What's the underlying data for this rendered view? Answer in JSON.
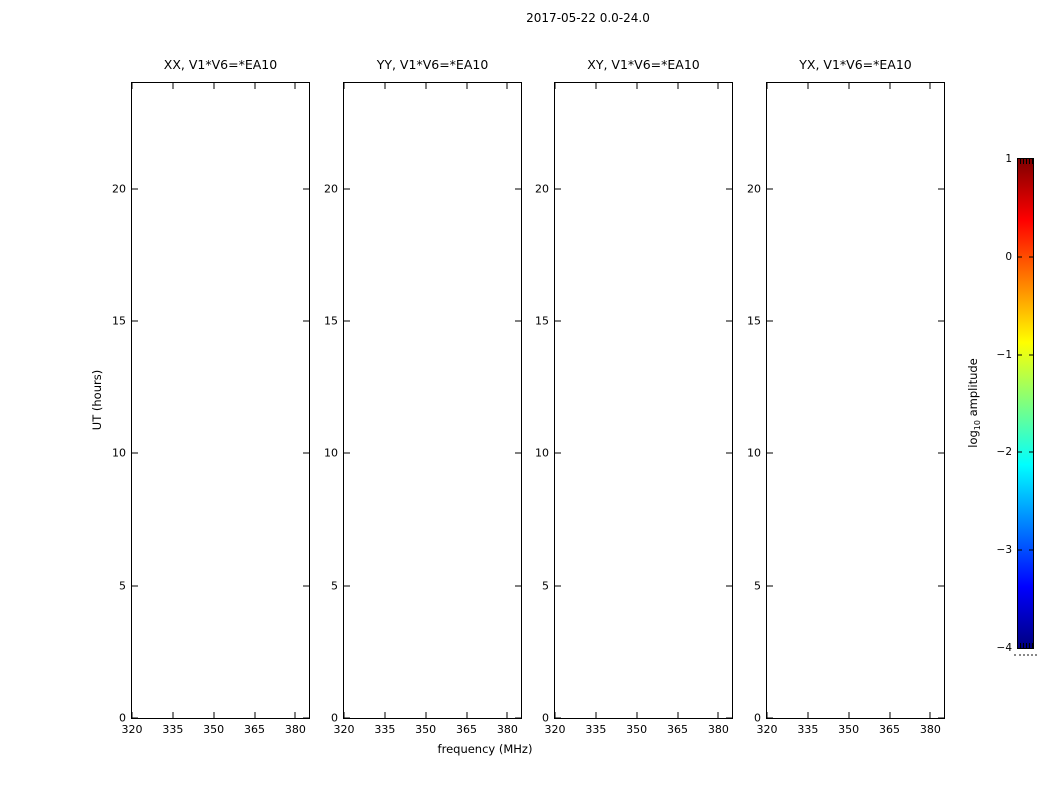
{
  "figure": {
    "suptitle": "2017-05-22 0.0-24.0",
    "xlabel": "frequency (MHz)",
    "ylabel": "UT (hours)"
  },
  "panels": [
    {
      "title": "XX, V1*V6=*EA10"
    },
    {
      "title": "YY, V1*V6=*EA10"
    },
    {
      "title": "XY, V1*V6=*EA10"
    },
    {
      "title": "YX, V1*V6=*EA10"
    }
  ],
  "axes": {
    "x_tick_labels": [
      "320",
      "335",
      "350",
      "365",
      "380"
    ],
    "y_tick_labels": [
      "0",
      "5",
      "10",
      "15",
      "20"
    ]
  },
  "colorbar": {
    "label_prefix": "log",
    "label_sub": "10",
    "label_suffix": " amplitude",
    "tick_labels": [
      "1",
      "0",
      "−1",
      "−2",
      "−3",
      "−4"
    ],
    "colormap": "jet",
    "gradient_top_to_bottom": [
      "#7f0000",
      "#ff0000",
      "#ff7f00",
      "#ffff00",
      "#7fff7f",
      "#00ffff",
      "#007fff",
      "#0000ff",
      "#00007f"
    ]
  },
  "chart_data": {
    "type": "heatmap",
    "suptitle": "2017-05-22 0.0-24.0",
    "xlabel": "frequency (MHz)",
    "ylabel": "UT (hours)",
    "xlim": [
      320,
      385
    ],
    "ylim": [
      0,
      24
    ],
    "x_ticks": [
      320,
      335,
      350,
      365,
      380
    ],
    "y_ticks": [
      0,
      5,
      10,
      15,
      20
    ],
    "subplots": [
      {
        "title": "XX, V1*V6=*EA10",
        "values": []
      },
      {
        "title": "YY, V1*V6=*EA10",
        "values": []
      },
      {
        "title": "XY, V1*V6=*EA10",
        "values": []
      },
      {
        "title": "YX, V1*V6=*EA10",
        "values": []
      }
    ],
    "colorbar": {
      "label": "log10 amplitude",
      "ticks": [
        1,
        0,
        -1,
        -2,
        -3,
        -4
      ],
      "lim": [
        -4,
        1
      ],
      "colormap": "jet"
    },
    "grid": false,
    "legend": false
  }
}
